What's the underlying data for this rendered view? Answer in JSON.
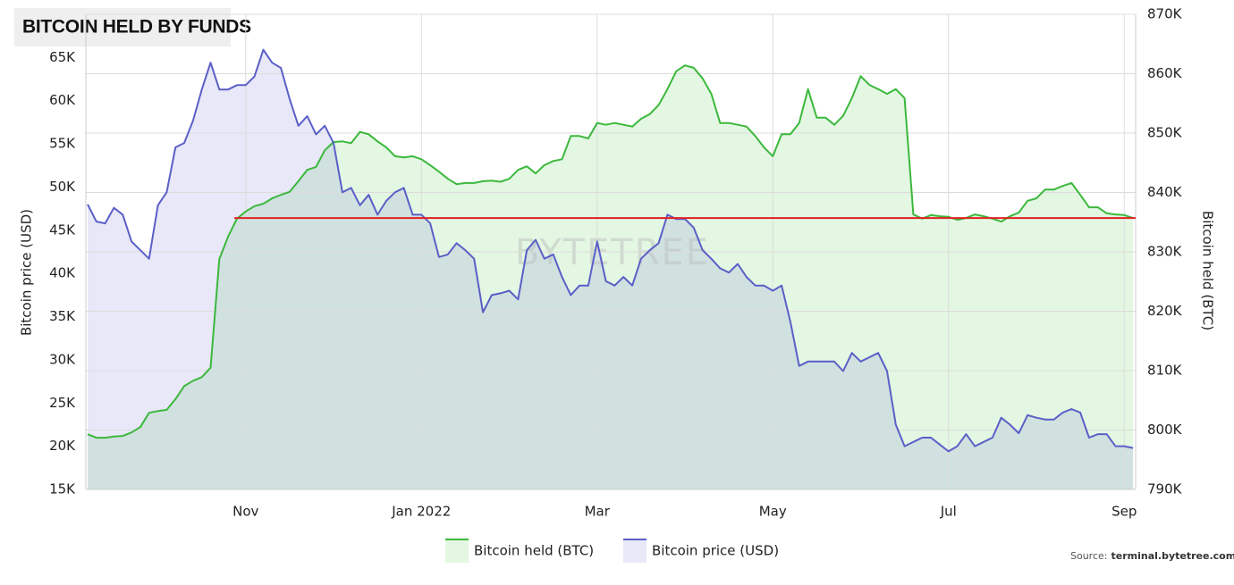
{
  "chart_data": {
    "type": "line",
    "title": "BITCOIN HELD BY FUNDS",
    "ylabel": "Bitcoin price (USD)",
    "y2label": "Bitcoin held (BTC)",
    "watermark": "BYTETREE",
    "source_label": "Source:",
    "source_site": "terminal.bytetree.com",
    "grid": true,
    "legend": "bottom",
    "xlim": [
      9.18,
      21.13
    ],
    "xticks": [
      {
        "value": 11,
        "label": "Nov"
      },
      {
        "value": 13,
        "label": "Jan 2022"
      },
      {
        "value": 15,
        "label": "Mar"
      },
      {
        "value": 17,
        "label": "May"
      },
      {
        "value": 19,
        "label": "Jul"
      },
      {
        "value": 21,
        "label": "Sep"
      }
    ],
    "ylim": [
      15000,
      70000
    ],
    "yticks": [
      {
        "value": 15000,
        "label": "15K"
      },
      {
        "value": 20000,
        "label": "20K"
      },
      {
        "value": 25000,
        "label": "25K"
      },
      {
        "value": 30000,
        "label": "30K"
      },
      {
        "value": 35000,
        "label": "35K"
      },
      {
        "value": 40000,
        "label": "40K"
      },
      {
        "value": 45000,
        "label": "45K"
      },
      {
        "value": 50000,
        "label": "50K"
      },
      {
        "value": 55000,
        "label": "55K"
      },
      {
        "value": 60000,
        "label": "60K"
      },
      {
        "value": 65000,
        "label": "65K"
      }
    ],
    "y2lim": [
      790000,
      870000
    ],
    "y2ticks": [
      {
        "value": 790000,
        "label": "790K"
      },
      {
        "value": 800000,
        "label": "800K"
      },
      {
        "value": 810000,
        "label": "810K"
      },
      {
        "value": 820000,
        "label": "820K"
      },
      {
        "value": 830000,
        "label": "830K"
      },
      {
        "value": 840000,
        "label": "840K"
      },
      {
        "value": 850000,
        "label": "850K"
      },
      {
        "value": 860000,
        "label": "860K"
      },
      {
        "value": 870000,
        "label": "870K"
      }
    ],
    "x": [
      9.2,
      9.3,
      9.4,
      9.5,
      9.6,
      9.7,
      9.8,
      9.9,
      10.0,
      10.1,
      10.2,
      10.3,
      10.4,
      10.5,
      10.6,
      10.7,
      10.8,
      10.9,
      11.0,
      11.1,
      11.2,
      11.3,
      11.4,
      11.5,
      11.6,
      11.7,
      11.8,
      11.9,
      12.0,
      12.1,
      12.2,
      12.3,
      12.4,
      12.5,
      12.6,
      12.7,
      12.8,
      12.9,
      13.0,
      13.1,
      13.2,
      13.3,
      13.4,
      13.5,
      13.6,
      13.7,
      13.8,
      13.9,
      14.0,
      14.1,
      14.2,
      14.3,
      14.4,
      14.5,
      14.6,
      14.7,
      14.8,
      14.9,
      15.0,
      15.1,
      15.2,
      15.3,
      15.4,
      15.5,
      15.6,
      15.7,
      15.8,
      15.9,
      16.0,
      16.1,
      16.2,
      16.3,
      16.4,
      16.5,
      16.6,
      16.7,
      16.8,
      16.9,
      17.0,
      17.1,
      17.2,
      17.3,
      17.4,
      17.5,
      17.6,
      17.7,
      17.8,
      17.9,
      18.0,
      18.1,
      18.2,
      18.3,
      18.4,
      18.5,
      18.6,
      18.7,
      18.8,
      18.9,
      19.0,
      19.1,
      19.2,
      19.3,
      19.4,
      19.5,
      19.6,
      19.7,
      19.8,
      19.9,
      20.0,
      20.1,
      20.2,
      20.3,
      20.4,
      20.5,
      20.6,
      20.7,
      20.8,
      20.9,
      21.0,
      21.1
    ],
    "series": [
      {
        "name": "Bitcoin held (BTC)",
        "color": "#3cb83c",
        "fill": "rgba(90,205,90,0.17)",
        "axis": "y2",
        "values": [
          799300,
          798700,
          798700,
          798900,
          799000,
          799600,
          800500,
          802900,
          803200,
          803400,
          805200,
          807400,
          808300,
          808900,
          810500,
          828800,
          832600,
          835600,
          836800,
          837700,
          838100,
          839000,
          839600,
          840100,
          841900,
          843800,
          844300,
          847100,
          848500,
          848600,
          848300,
          850200,
          849800,
          848600,
          847600,
          846100,
          845900,
          846100,
          845600,
          844600,
          843500,
          842300,
          841400,
          841600,
          841600,
          841900,
          842000,
          841800,
          842300,
          843800,
          844400,
          843200,
          844600,
          845300,
          845600,
          849500,
          849500,
          849100,
          851700,
          851400,
          851700,
          851400,
          851100,
          852400,
          853200,
          854700,
          857400,
          860400,
          861400,
          861000,
          859200,
          856600,
          851700,
          851700,
          851400,
          851100,
          849500,
          847600,
          846100,
          849800,
          849800,
          851700,
          857400,
          852600,
          852600,
          851400,
          852900,
          855900,
          859600,
          858100,
          857400,
          856600,
          857400,
          855900,
          836300,
          835600,
          836200,
          836000,
          835900,
          835400,
          835700,
          836300,
          836000,
          835600,
          835100,
          836000,
          836600,
          838600,
          839000,
          840500,
          840500,
          841100,
          841600,
          839600,
          837500,
          837500,
          836500,
          836300,
          836200,
          835700
        ]
      },
      {
        "name": "Bitcoin price (USD)",
        "color": "#5b5fc7",
        "fill": "rgba(110,115,210,0.16)",
        "axis": "y",
        "values": [
          48000,
          46000,
          45800,
          47600,
          46800,
          43700,
          42700,
          41700,
          47900,
          49400,
          54600,
          55100,
          57700,
          61300,
          64400,
          61300,
          61300,
          61800,
          61800,
          62800,
          65900,
          64400,
          63800,
          60200,
          57100,
          58200,
          56100,
          57100,
          55100,
          49400,
          49900,
          47900,
          49100,
          46800,
          48400,
          49400,
          49900,
          46800,
          46800,
          45800,
          41900,
          42200,
          43500,
          42700,
          41700,
          35500,
          37500,
          37700,
          38000,
          37000,
          42700,
          43900,
          41700,
          42200,
          39600,
          37500,
          38600,
          38600,
          43700,
          39100,
          38600,
          39600,
          38600,
          41700,
          42700,
          43500,
          46800,
          46300,
          46300,
          45300,
          42700,
          41700,
          40600,
          40100,
          41100,
          39600,
          38600,
          38600,
          38000,
          38600,
          34400,
          29300,
          29800,
          29800,
          29800,
          29800,
          28700,
          30800,
          29800,
          30300,
          30800,
          28700,
          22500,
          20000,
          20500,
          21000,
          21000,
          20200,
          19400,
          20000,
          21400,
          20000,
          20500,
          21000,
          23300,
          22500,
          21500,
          23600,
          23300,
          23100,
          23100,
          23900,
          24300,
          23900,
          21000,
          21400,
          21400,
          20000,
          20000,
          19800
        ]
      }
    ],
    "hline": {
      "value": 835700,
      "axis": "y2",
      "color": "#e02020",
      "xstart": 10.87
    }
  }
}
